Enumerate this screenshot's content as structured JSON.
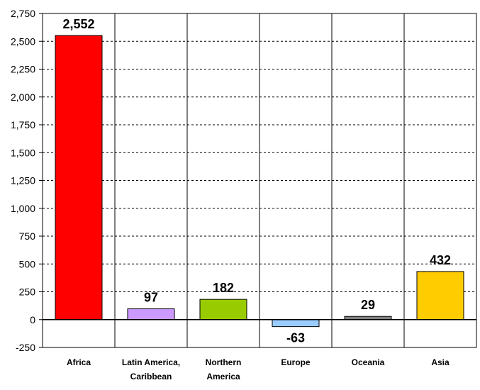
{
  "chart_data": {
    "type": "bar",
    "categories": [
      [
        "Africa"
      ],
      [
        "Latin America,",
        "Caribbean"
      ],
      [
        "Northern",
        "America"
      ],
      [
        "Europe"
      ],
      [
        "Oceania"
      ],
      [
        "Asia"
      ]
    ],
    "values": [
      2552,
      97,
      182,
      -63,
      29,
      432
    ],
    "data_labels": [
      "2,552",
      "97",
      "182",
      "-63",
      "29",
      "432"
    ],
    "colors": [
      "#ff0000",
      "#cc99ff",
      "#99cc00",
      "#99ccff",
      "#808080",
      "#ffcc00"
    ],
    "ylim": [
      -250,
      2750
    ],
    "yticks": [
      -250,
      0,
      250,
      500,
      750,
      1000,
      1250,
      1500,
      1750,
      2000,
      2250,
      2500,
      2750
    ],
    "ytick_labels": [
      "-250",
      "0",
      "250",
      "500",
      "750",
      "1,000",
      "1,250",
      "1,500",
      "1,750",
      "2,000",
      "2,250",
      "2,500",
      "2,750"
    ],
    "grid": "horizontal-dashed",
    "title": "",
    "xlabel": "",
    "ylabel": ""
  }
}
